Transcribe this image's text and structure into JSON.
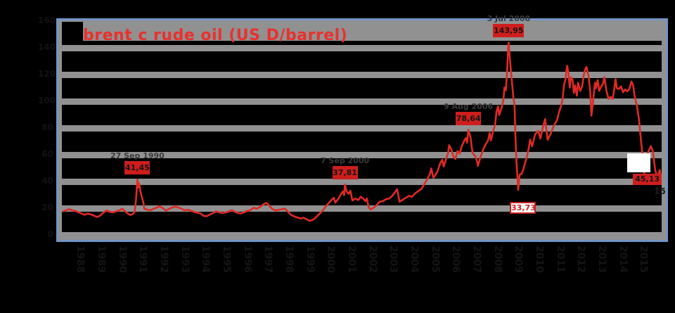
{
  "colors": {
    "background": "#000000",
    "frame_border": "#7295c5",
    "frame_fill": "#919191",
    "plot_background": "#000000",
    "gridline": "#919191",
    "series_line": "#e02a25",
    "title_text": "#e8312e",
    "peak_label_bg": "#cf1d1d",
    "peak_label_text": "#151515",
    "trough_label_bg": "#ffffff",
    "trough_label_text": "#d42020",
    "trough_label_border": "#c31f1f"
  },
  "chart_data": {
    "type": "line",
    "title": "brent c rude oil (US  D/barrel)",
    "xlabel": "",
    "ylabel": "",
    "x_range": [
      1987,
      2016
    ],
    "y_range": [
      0,
      160
    ],
    "y_gridlines": [
      20,
      40,
      60,
      80,
      100,
      120,
      140
    ],
    "grid": "horizontal-bands",
    "legend": "none",
    "series": [
      {
        "name": "Brent crude oil price (USD/barrel)",
        "points": [
          [
            1987.15,
            17.6
          ],
          [
            1987.3,
            18.3
          ],
          [
            1987.45,
            19.2
          ],
          [
            1987.6,
            18.4
          ],
          [
            1987.75,
            18.0
          ],
          [
            1987.9,
            17.0
          ],
          [
            1988.05,
            16.0
          ],
          [
            1988.2,
            15.1
          ],
          [
            1988.35,
            16.0
          ],
          [
            1988.5,
            15.3
          ],
          [
            1988.65,
            14.4
          ],
          [
            1988.8,
            13.4
          ],
          [
            1988.95,
            14.5
          ],
          [
            1989.1,
            16.8
          ],
          [
            1989.25,
            18.2
          ],
          [
            1989.4,
            17.3
          ],
          [
            1989.55,
            16.9
          ],
          [
            1989.7,
            17.6
          ],
          [
            1989.85,
            18.3
          ],
          [
            1990.0,
            19.6
          ],
          [
            1990.1,
            18.3
          ],
          [
            1990.25,
            16.2
          ],
          [
            1990.4,
            14.9
          ],
          [
            1990.5,
            15.6
          ],
          [
            1990.6,
            17.3
          ],
          [
            1990.67,
            28.0
          ],
          [
            1990.73,
            41.45
          ],
          [
            1990.78,
            35.5
          ],
          [
            1990.82,
            38.5
          ],
          [
            1990.88,
            32.0
          ],
          [
            1990.95,
            28.0
          ],
          [
            1991.02,
            24.0
          ],
          [
            1991.06,
            19.6
          ],
          [
            1991.2,
            18.9
          ],
          [
            1991.35,
            18.3
          ],
          [
            1991.5,
            19.6
          ],
          [
            1991.65,
            20.4
          ],
          [
            1991.8,
            21.4
          ],
          [
            1991.95,
            20.0
          ],
          [
            1992.1,
            18.2
          ],
          [
            1992.25,
            19.4
          ],
          [
            1992.4,
            20.6
          ],
          [
            1992.55,
            21.2
          ],
          [
            1992.7,
            20.5
          ],
          [
            1992.85,
            19.5
          ],
          [
            1993.0,
            18.3
          ],
          [
            1993.15,
            18.9
          ],
          [
            1993.3,
            18.1
          ],
          [
            1993.45,
            17.2
          ],
          [
            1993.6,
            16.7
          ],
          [
            1993.75,
            16.1
          ],
          [
            1993.9,
            14.3
          ],
          [
            1994.05,
            14.0
          ],
          [
            1994.2,
            15.2
          ],
          [
            1994.35,
            16.3
          ],
          [
            1994.5,
            17.6
          ],
          [
            1994.65,
            17.0
          ],
          [
            1994.8,
            16.3
          ],
          [
            1994.95,
            16.8
          ],
          [
            1995.1,
            17.5
          ],
          [
            1995.25,
            18.4
          ],
          [
            1995.4,
            17.4
          ],
          [
            1995.55,
            16.4
          ],
          [
            1995.7,
            16.1
          ],
          [
            1995.85,
            17.0
          ],
          [
            1996.0,
            17.9
          ],
          [
            1996.15,
            18.6
          ],
          [
            1996.3,
            20.3
          ],
          [
            1996.45,
            19.6
          ],
          [
            1996.6,
            20.8
          ],
          [
            1996.75,
            22.6
          ],
          [
            1996.9,
            24.0
          ],
          [
            1997.05,
            22.0
          ],
          [
            1997.2,
            19.4
          ],
          [
            1997.35,
            18.3
          ],
          [
            1997.5,
            18.8
          ],
          [
            1997.65,
            19.2
          ],
          [
            1997.8,
            19.7
          ],
          [
            1997.95,
            17.3
          ],
          [
            1998.1,
            15.0
          ],
          [
            1998.25,
            13.9
          ],
          [
            1998.4,
            13.0
          ],
          [
            1998.55,
            12.3
          ],
          [
            1998.7,
            12.9
          ],
          [
            1998.85,
            11.6
          ],
          [
            1999.0,
            10.6
          ],
          [
            1999.15,
            11.3
          ],
          [
            1999.3,
            13.2
          ],
          [
            1999.45,
            15.8
          ],
          [
            1999.6,
            17.9
          ],
          [
            1999.75,
            21.2
          ],
          [
            1999.9,
            23.8
          ],
          [
            2000.05,
            26.4
          ],
          [
            2000.15,
            27.8
          ],
          [
            2000.22,
            24.1
          ],
          [
            2000.35,
            26.8
          ],
          [
            2000.48,
            30.2
          ],
          [
            2000.58,
            32.5
          ],
          [
            2000.64,
            29.8
          ],
          [
            2000.68,
            37.81
          ],
          [
            2000.76,
            32.5
          ],
          [
            2000.86,
            30.8
          ],
          [
            2000.94,
            33.0
          ],
          [
            2001.04,
            25.8
          ],
          [
            2001.18,
            27.2
          ],
          [
            2001.32,
            26.1
          ],
          [
            2001.44,
            28.6
          ],
          [
            2001.56,
            27.2
          ],
          [
            2001.66,
            25.2
          ],
          [
            2001.73,
            27.3
          ],
          [
            2001.82,
            20.6
          ],
          [
            2001.92,
            19.1
          ],
          [
            2002.05,
            20.3
          ],
          [
            2002.2,
            22.3
          ],
          [
            2002.35,
            24.9
          ],
          [
            2002.5,
            25.3
          ],
          [
            2002.65,
            26.8
          ],
          [
            2002.8,
            27.2
          ],
          [
            2002.95,
            29.3
          ],
          [
            2003.1,
            32.3
          ],
          [
            2003.18,
            34.2
          ],
          [
            2003.3,
            24.8
          ],
          [
            2003.45,
            26.3
          ],
          [
            2003.6,
            27.8
          ],
          [
            2003.75,
            29.2
          ],
          [
            2003.9,
            28.6
          ],
          [
            2004.05,
            31.2
          ],
          [
            2004.2,
            32.8
          ],
          [
            2004.35,
            34.4
          ],
          [
            2004.5,
            38.2
          ],
          [
            2004.65,
            42.3
          ],
          [
            2004.75,
            45.5
          ],
          [
            2004.82,
            49.8
          ],
          [
            2004.92,
            42.8
          ],
          [
            2005.02,
            44.8
          ],
          [
            2005.12,
            47.6
          ],
          [
            2005.25,
            53.8
          ],
          [
            2005.35,
            56.2
          ],
          [
            2005.42,
            51.2
          ],
          [
            2005.55,
            58.0
          ],
          [
            2005.63,
            61.5
          ],
          [
            2005.68,
            67.2
          ],
          [
            2005.78,
            64.0
          ],
          [
            2005.88,
            58.8
          ],
          [
            2005.98,
            56.8
          ],
          [
            2006.08,
            62.8
          ],
          [
            2006.18,
            60.8
          ],
          [
            2006.28,
            66.2
          ],
          [
            2006.4,
            70.4
          ],
          [
            2006.48,
            72.6
          ],
          [
            2006.54,
            69.0
          ],
          [
            2006.6,
            78.64
          ],
          [
            2006.7,
            73.2
          ],
          [
            2006.8,
            61.2
          ],
          [
            2006.92,
            59.2
          ],
          [
            2007.0,
            56.0
          ],
          [
            2007.06,
            51.7
          ],
          [
            2007.18,
            58.2
          ],
          [
            2007.32,
            64.3
          ],
          [
            2007.45,
            68.2
          ],
          [
            2007.55,
            71.0
          ],
          [
            2007.62,
            76.4
          ],
          [
            2007.68,
            70.8
          ],
          [
            2007.78,
            77.3
          ],
          [
            2007.88,
            82.6
          ],
          [
            2007.95,
            92.3
          ],
          [
            2008.02,
            96.2
          ],
          [
            2008.08,
            89.8
          ],
          [
            2008.18,
            94.3
          ],
          [
            2008.28,
            101.0
          ],
          [
            2008.33,
            110.3
          ],
          [
            2008.4,
            108.2
          ],
          [
            2008.47,
            126.0
          ],
          [
            2008.5,
            138.5
          ],
          [
            2008.53,
            143.95
          ],
          [
            2008.58,
            133.8
          ],
          [
            2008.64,
            123.0
          ],
          [
            2008.7,
            112.8
          ],
          [
            2008.76,
            102.5
          ],
          [
            2008.81,
            97.8
          ],
          [
            2008.86,
            71.8
          ],
          [
            2008.91,
            52.8
          ],
          [
            2008.96,
            42.0
          ],
          [
            2008.99,
            33.73
          ],
          [
            2009.06,
            45.2
          ],
          [
            2009.16,
            45.9
          ],
          [
            2009.26,
            50.3
          ],
          [
            2009.4,
            58.3
          ],
          [
            2009.5,
            65.2
          ],
          [
            2009.56,
            71.3
          ],
          [
            2009.66,
            66.3
          ],
          [
            2009.8,
            75.2
          ],
          [
            2009.95,
            77.9
          ],
          [
            2010.05,
            72.1
          ],
          [
            2010.16,
            79.8
          ],
          [
            2010.28,
            86.8
          ],
          [
            2010.4,
            71.2
          ],
          [
            2010.55,
            75.8
          ],
          [
            2010.7,
            81.8
          ],
          [
            2010.85,
            85.8
          ],
          [
            2010.95,
            92.2
          ],
          [
            2011.05,
            96.8
          ],
          [
            2011.12,
            101.8
          ],
          [
            2011.18,
            111.8
          ],
          [
            2011.26,
            116.8
          ],
          [
            2011.3,
            122.8
          ],
          [
            2011.34,
            126.65
          ],
          [
            2011.4,
            120.8
          ],
          [
            2011.46,
            110.2
          ],
          [
            2011.52,
            118.0
          ],
          [
            2011.6,
            115.8
          ],
          [
            2011.66,
            106.2
          ],
          [
            2011.72,
            111.8
          ],
          [
            2011.8,
            104.2
          ],
          [
            2011.86,
            113.8
          ],
          [
            2011.96,
            107.8
          ],
          [
            2012.06,
            111.5
          ],
          [
            2012.12,
            118.8
          ],
          [
            2012.2,
            123.8
          ],
          [
            2012.26,
            125.8
          ],
          [
            2012.36,
            118.9
          ],
          [
            2012.44,
            107.8
          ],
          [
            2012.5,
            89.2
          ],
          [
            2012.56,
            97.3
          ],
          [
            2012.62,
            106.3
          ],
          [
            2012.67,
            113.9
          ],
          [
            2012.72,
            109.8
          ],
          [
            2012.8,
            115.8
          ],
          [
            2012.87,
            107.8
          ],
          [
            2012.96,
            110.8
          ],
          [
            2013.06,
            113.2
          ],
          [
            2013.12,
            118.2
          ],
          [
            2013.22,
            107.8
          ],
          [
            2013.32,
            101.8
          ],
          [
            2013.42,
            103.3
          ],
          [
            2013.52,
            101.9
          ],
          [
            2013.58,
            107.8
          ],
          [
            2013.66,
            116.6
          ],
          [
            2013.72,
            109.8
          ],
          [
            2013.82,
            109.2
          ],
          [
            2013.92,
            111.2
          ],
          [
            2014.02,
            106.8
          ],
          [
            2014.12,
            108.9
          ],
          [
            2014.22,
            107.4
          ],
          [
            2014.32,
            109.4
          ],
          [
            2014.42,
            114.8
          ],
          [
            2014.5,
            112.0
          ],
          [
            2014.58,
            103.2
          ],
          [
            2014.68,
            96.8
          ],
          [
            2014.78,
            86.2
          ],
          [
            2014.88,
            70.2
          ],
          [
            2014.97,
            56.8
          ],
          [
            2015.03,
            45.13
          ],
          [
            2015.1,
            56.8
          ],
          [
            2015.2,
            61.3
          ],
          [
            2015.35,
            66.4
          ],
          [
            2015.45,
            62.3
          ],
          [
            2015.55,
            49.3
          ],
          [
            2015.65,
            42.6
          ],
          [
            2015.78,
            48.6
          ],
          [
            2015.88,
            38.4
          ]
        ]
      }
    ],
    "annotations": [
      {
        "kind": "peak",
        "date": "27 Sep 1990",
        "value_label": "41,45",
        "x_year": 1990.73,
        "value": 41.45
      },
      {
        "kind": "peak",
        "date": "7 Sep 2000",
        "value_label": "37,81",
        "x_year": 2000.68,
        "value": 37.81
      },
      {
        "kind": "peak",
        "date": "9 Aug 2006",
        "value_label": "78,64",
        "x_year": 2006.6,
        "value": 78.64
      },
      {
        "kind": "peak",
        "date": "3 Jul 2008",
        "value_label": "143,95",
        "x_year": 2008.53,
        "value": 143.95
      },
      {
        "kind": "trough",
        "date": "",
        "value_label": "33,73",
        "x_year": 2008.99,
        "value": 33.73
      },
      {
        "kind": "trough-red",
        "date": "15",
        "value_label": "45,13",
        "x_year": 2015.03,
        "value": 45.13
      },
      {
        "kind": "blank-white",
        "date": "",
        "value_label": "",
        "x_year": 2014.78,
        "value": 61
      }
    ]
  },
  "x_axis": {
    "labels": [
      "1988",
      "1989",
      "1990",
      "1991",
      "1992",
      "1993",
      "1994",
      "1995",
      "1996",
      "1997",
      "1998",
      "1999",
      "2000",
      "2001",
      "2002",
      "2003",
      "2004",
      "2005",
      "2006",
      "2007",
      "2008",
      "2009",
      "2010",
      "2011",
      "2012",
      "2013",
      "2014",
      "2015"
    ]
  },
  "y_axis": {
    "labels": [
      "0",
      "20",
      "40",
      "60",
      "80",
      "100",
      "120",
      "140",
      "160"
    ]
  }
}
